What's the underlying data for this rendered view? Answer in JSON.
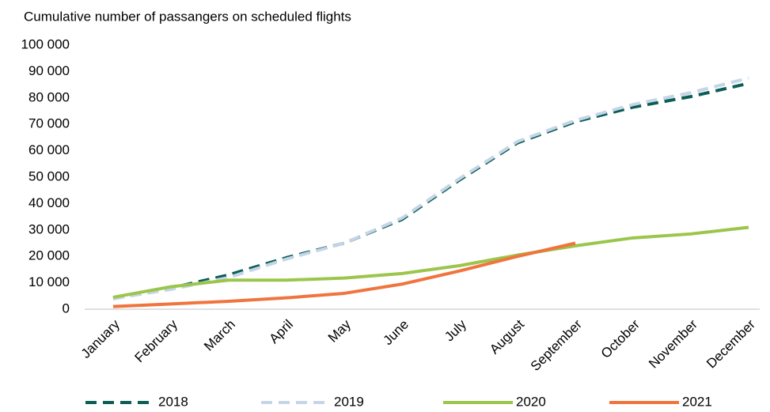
{
  "chart_data": {
    "type": "line",
    "title": "Cumulative number of passangers on scheduled flights",
    "categories": [
      "January",
      "February",
      "March",
      "April",
      "May",
      "June",
      "July",
      "August",
      "September",
      "October",
      "November",
      "December"
    ],
    "series": [
      {
        "name": "2018",
        "color": "#0b5e55",
        "dashed": true,
        "values": [
          4000,
          8000,
          13000,
          19500,
          25000,
          34000,
          49000,
          63000,
          71000,
          76500,
          80500,
          85500
        ]
      },
      {
        "name": "2019",
        "color": "#c5d5e8",
        "dashed": true,
        "values": [
          4000,
          7500,
          12000,
          19000,
          25000,
          34500,
          49500,
          63500,
          71500,
          77500,
          82000,
          87500
        ]
      },
      {
        "name": "2020",
        "color": "#9bc54b",
        "dashed": false,
        "values": [
          4500,
          8500,
          11000,
          11000,
          11800,
          13500,
          16500,
          20500,
          24000,
          27000,
          28500,
          31000
        ]
      },
      {
        "name": "2021",
        "color": "#f0743e",
        "dashed": false,
        "values": [
          1000,
          2000,
          3000,
          4300,
          6000,
          9500,
          14500,
          20000,
          25000,
          null,
          null,
          null
        ]
      }
    ],
    "ylim": [
      0,
      100000
    ],
    "yticks": [
      0,
      {
        "value": 10000,
        "label": "10 000"
      },
      {
        "value": 20000,
        "label": "20 000"
      },
      {
        "value": 30000,
        "label": "30 000"
      },
      {
        "value": 40000,
        "label": "40 000"
      },
      {
        "value": 50000,
        "label": "50 000"
      },
      {
        "value": 60000,
        "label": "60 000"
      },
      {
        "value": 70000,
        "label": "70 000"
      },
      {
        "value": 80000,
        "label": "80 000"
      },
      {
        "value": 90000,
        "label": "90 000"
      },
      {
        "value": 100000,
        "label": "100 000"
      }
    ],
    "grid": false,
    "legend": "bottom"
  }
}
